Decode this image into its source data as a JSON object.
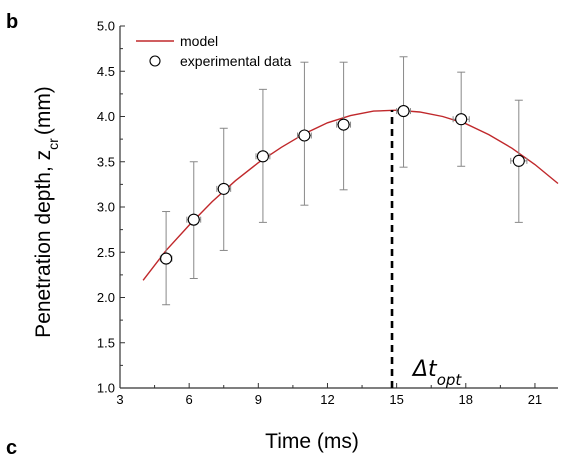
{
  "panel_label": "b",
  "next_panel_label": "c",
  "colors": {
    "model_line": "#c0282b",
    "axis": "#333333",
    "errorbar": "#888888",
    "marker_edge": "#000000"
  },
  "chart_data": {
    "type": "scatter",
    "title": "",
    "xlabel": "Time (ms)",
    "ylabel_main": "Penetration depth, z",
    "ylabel_sub": "cr",
    "ylabel_unit": "(mm)",
    "xlim": [
      3,
      22
    ],
    "ylim": [
      1.0,
      5.0
    ],
    "xticks": [
      3,
      6,
      9,
      12,
      15,
      18,
      21
    ],
    "yticks": [
      1.0,
      1.5,
      2.0,
      2.5,
      3.0,
      3.5,
      4.0,
      4.5,
      5.0
    ],
    "grid": false,
    "legend_position": "top-left",
    "series": [
      {
        "name": "model",
        "type": "line",
        "x": [
          4.0,
          5.0,
          6.0,
          7.0,
          8.0,
          9.0,
          10.0,
          11.0,
          12.0,
          13.0,
          14.0,
          15.0,
          16.0,
          17.0,
          18.0,
          19.0,
          20.0,
          21.0,
          22.0
        ],
        "y": [
          2.19,
          2.52,
          2.8,
          3.06,
          3.29,
          3.49,
          3.66,
          3.81,
          3.93,
          4.01,
          4.06,
          4.07,
          4.05,
          4.0,
          3.92,
          3.8,
          3.65,
          3.47,
          3.26
        ]
      },
      {
        "name": "experimental data",
        "type": "scatter",
        "points": [
          {
            "x": 5.0,
            "y": 2.43,
            "yerr_low": 1.92,
            "yerr_high": 2.95,
            "xerr": 0.25
          },
          {
            "x": 6.2,
            "y": 2.86,
            "yerr_low": 2.21,
            "yerr_high": 3.5,
            "xerr": 0.3
          },
          {
            "x": 7.5,
            "y": 3.2,
            "yerr_low": 2.52,
            "yerr_high": 3.87,
            "xerr": 0.3
          },
          {
            "x": 9.2,
            "y": 3.56,
            "yerr_low": 2.83,
            "yerr_high": 4.3,
            "xerr": 0.3
          },
          {
            "x": 11.0,
            "y": 3.79,
            "yerr_low": 3.02,
            "yerr_high": 4.6,
            "xerr": 0.3
          },
          {
            "x": 12.7,
            "y": 3.91,
            "yerr_low": 3.19,
            "yerr_high": 4.6,
            "xerr": 0.3
          },
          {
            "x": 15.3,
            "y": 4.06,
            "yerr_low": 3.44,
            "yerr_high": 4.66,
            "xerr": 0.3
          },
          {
            "x": 17.8,
            "y": 3.97,
            "yerr_low": 3.45,
            "yerr_high": 4.49,
            "xerr": 0.35
          },
          {
            "x": 20.3,
            "y": 3.51,
            "yerr_low": 2.83,
            "yerr_high": 4.18,
            "xerr": 0.35
          }
        ]
      }
    ],
    "annotations": [
      {
        "type": "vline",
        "style": "dashed",
        "x": 14.8,
        "y_from": 1.0,
        "y_to": 4.07
      },
      {
        "type": "text",
        "base": "Δt",
        "subscript": "opt"
      }
    ]
  }
}
